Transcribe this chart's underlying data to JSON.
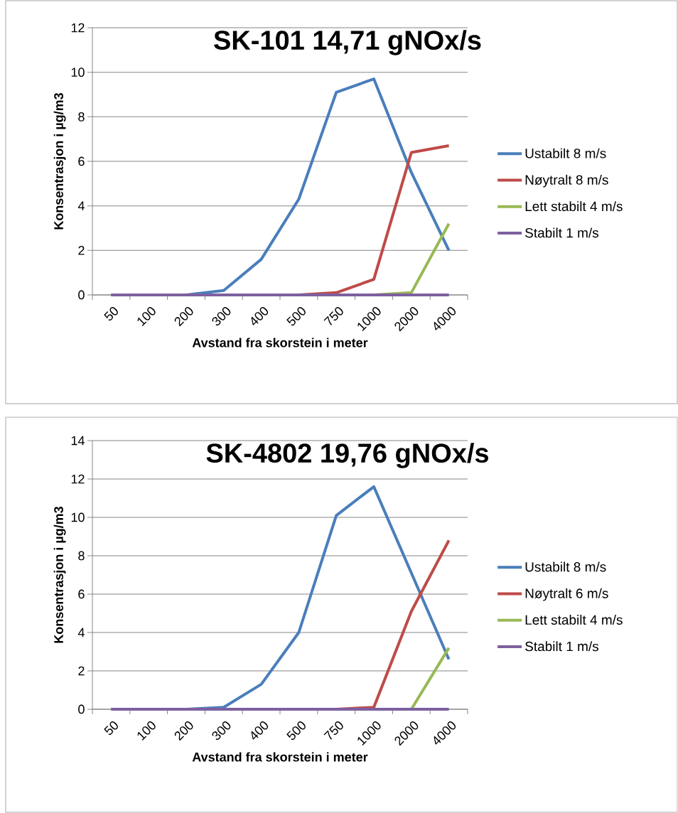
{
  "chart_data": [
    {
      "type": "line",
      "title": "SK-101 14,71 gNOx/s",
      "xlabel": "Avstand fra skorstein i meter",
      "ylabel": "Konsentrasjon i  µg/m3",
      "categories": [
        "50",
        "100",
        "200",
        "300",
        "400",
        "500",
        "750",
        "1000",
        "2000",
        "4000"
      ],
      "series": [
        {
          "name": "Ustabilt 8 m/s",
          "color": "#4a7ebb",
          "values": [
            0,
            0,
            0,
            0.2,
            1.6,
            4.3,
            9.1,
            9.7,
            5.5,
            2.0
          ]
        },
        {
          "name": "Nøytralt 8 m/s",
          "color": "#be4b48",
          "values": [
            null,
            null,
            null,
            null,
            0,
            0,
            0.1,
            0.7,
            6.4,
            6.7
          ]
        },
        {
          "name": "Lett stabilt 4 m/s",
          "color": "#98b954",
          "values": [
            null,
            null,
            null,
            null,
            null,
            null,
            null,
            0,
            0.1,
            3.2
          ]
        },
        {
          "name": "Stabilt 1 m/s",
          "color": "#7d60a0",
          "values": [
            0,
            0,
            0,
            0,
            0,
            0,
            0,
            0,
            0,
            0
          ]
        }
      ],
      "ylim": [
        0,
        12
      ],
      "yticks": [
        0,
        2,
        4,
        6,
        8,
        10,
        12
      ],
      "grid": "y",
      "legend": "right",
      "marker": "none"
    },
    {
      "type": "line",
      "title": "SK-4802 19,76 gNOx/s",
      "xlabel": "Avstand fra skorstein i meter",
      "ylabel": "Konsentrasjon i µg/m3",
      "categories": [
        "50",
        "100",
        "200",
        "300",
        "400",
        "500",
        "750",
        "1000",
        "2000",
        "4000"
      ],
      "series": [
        {
          "name": "Ustabilt 8 m/s",
          "color": "#4a7ebb",
          "values": [
            0,
            0,
            0,
            0.1,
            1.3,
            4.0,
            10.1,
            11.6,
            7.1,
            2.6
          ]
        },
        {
          "name": "Nøytralt 6 m/s",
          "color": "#be4b48",
          "values": [
            null,
            null,
            null,
            null,
            null,
            0,
            0,
            0.1,
            5.1,
            8.8
          ]
        },
        {
          "name": "Lett stabilt 4 m/s",
          "color": "#98b954",
          "values": [
            null,
            null,
            null,
            null,
            null,
            null,
            null,
            0,
            0,
            3.2
          ]
        },
        {
          "name": "Stabilt 1 m/s",
          "color": "#7d60a0",
          "values": [
            0,
            0,
            0,
            0,
            0,
            0,
            0,
            0,
            0,
            0
          ]
        }
      ],
      "ylim": [
        0,
        14
      ],
      "yticks": [
        0,
        2,
        4,
        6,
        8,
        10,
        12,
        14
      ],
      "grid": "y",
      "legend": "right",
      "marker": "none"
    }
  ]
}
